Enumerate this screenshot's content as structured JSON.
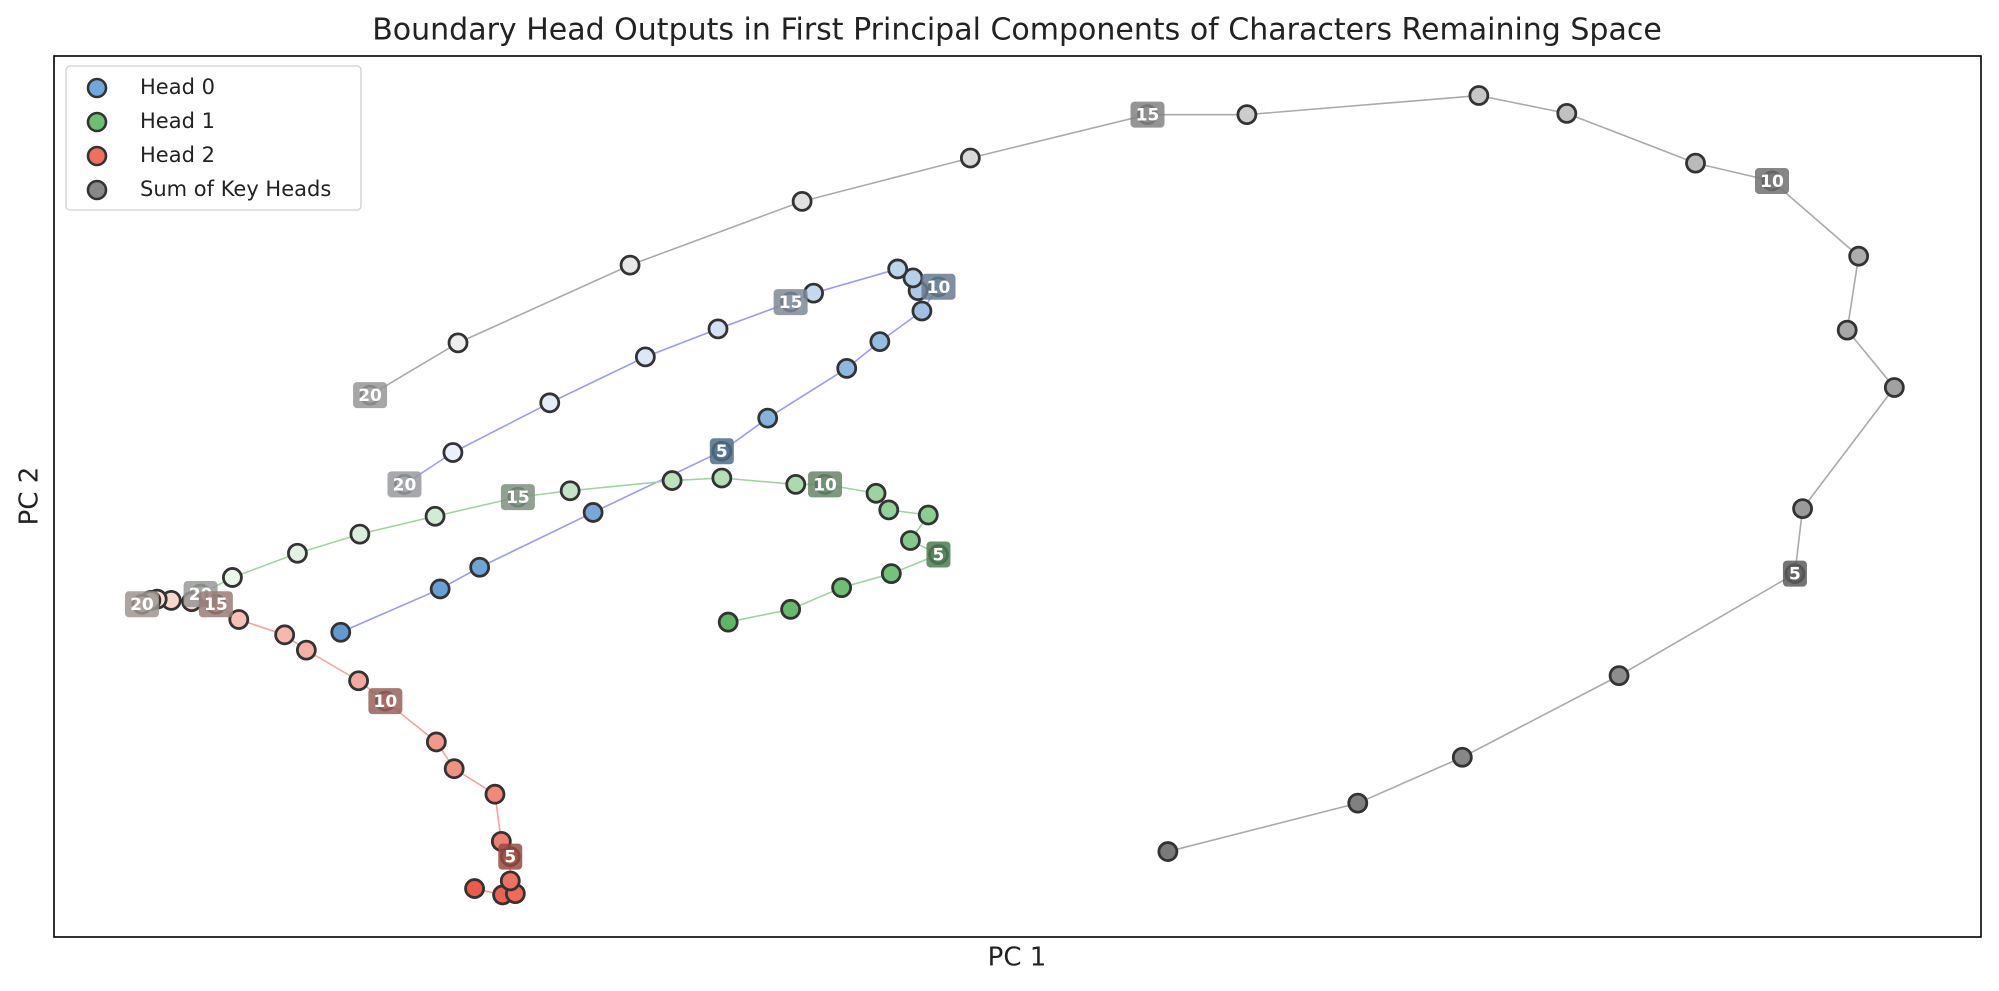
{
  "chart_data": {
    "type": "line",
    "title": "Boundary Head Outputs in First Principal Components of Characters Remaining Space",
    "x_label": "PC 1",
    "y_label": "PC 2",
    "xlim": [
      0,
      1512
    ],
    "ylim": [
      0,
      691
    ],
    "legend": "upper left",
    "series": [
      {
        "name": "Head 0",
        "color": "#6fa8dc",
        "gradient": [
          "#5f9bd3",
          "#f2f6fb"
        ],
        "line_color": "#9a9af5",
        "x": [
          225,
          303,
          334,
          423,
          524,
          560,
          622,
          648,
          681,
          694,
          678,
          674,
          662,
          596,
          578,
          521,
          464,
          389,
          313,
          275
        ],
        "y": [
          239,
          273,
          290,
          333,
          381,
          407,
          446,
          467,
          491,
          510,
          507,
          517,
          524,
          505,
          498,
          477,
          455,
          419,
          380,
          355
        ],
        "point_labels": [
          null,
          null,
          null,
          null,
          5,
          null,
          null,
          null,
          null,
          10,
          null,
          null,
          null,
          null,
          15,
          null,
          null,
          null,
          null,
          20
        ]
      },
      {
        "name": "Head 1",
        "color": "#6dbf73",
        "gradient": [
          "#5db865",
          "#f2f9f1"
        ],
        "line_color": "#9fd49f",
        "x": [
          529,
          578,
          618,
          657,
          694,
          672,
          686,
          655,
          645,
          605,
          582,
          524,
          485,
          405,
          364,
          299,
          240,
          191,
          140,
          115
        ],
        "y": [
          247,
          257,
          274,
          285,
          300,
          311,
          331,
          335,
          348,
          355,
          355,
          360,
          358,
          350,
          345,
          330,
          316,
          301,
          282,
          269
        ],
        "point_labels": [
          null,
          null,
          null,
          null,
          5,
          null,
          null,
          null,
          null,
          10,
          null,
          null,
          null,
          null,
          15,
          null,
          null,
          null,
          null,
          20
        ]
      },
      {
        "name": "Head 2",
        "color": "#f07060",
        "gradient": [
          "#ec5a48",
          "#fdeee6"
        ],
        "line_color": "#f4a39a",
        "x": [
          330,
          352,
          362,
          358,
          358,
          351,
          346,
          314,
          300,
          260,
          239,
          198,
          181,
          145,
          127,
          108,
          92,
          81,
          76,
          69
        ],
        "y": [
          38,
          33,
          34,
          44,
          63,
          75,
          112,
          132,
          153,
          185,
          201,
          225,
          237,
          249,
          261,
          263,
          264,
          265,
          264,
          261
        ],
        "point_labels": [
          null,
          null,
          null,
          null,
          5,
          null,
          null,
          null,
          null,
          10,
          null,
          null,
          null,
          null,
          15,
          null,
          null,
          null,
          null,
          20
        ]
      },
      {
        "name": "Sum of Key Heads",
        "color": "#888888",
        "gradient": [
          "#7a7a7a",
          "#f4f4f4"
        ],
        "line_color": "#aaaaaa",
        "x": [
          874,
          1023,
          1105,
          1228,
          1366,
          1372,
          1444,
          1407,
          1416,
          1348,
          1288,
          1187,
          1118,
          936,
          858,
          719,
          587,
          452,
          317,
          248
        ],
        "y": [
          67,
          105,
          141,
          205,
          285,
          336,
          431,
          476,
          534,
          593,
          607,
          646,
          660,
          645,
          645,
          611,
          577,
          527,
          466,
          425
        ],
        "point_labels": [
          null,
          null,
          null,
          null,
          5,
          null,
          null,
          null,
          null,
          10,
          null,
          null,
          null,
          null,
          15,
          null,
          null,
          null,
          null,
          20
        ]
      }
    ]
  }
}
